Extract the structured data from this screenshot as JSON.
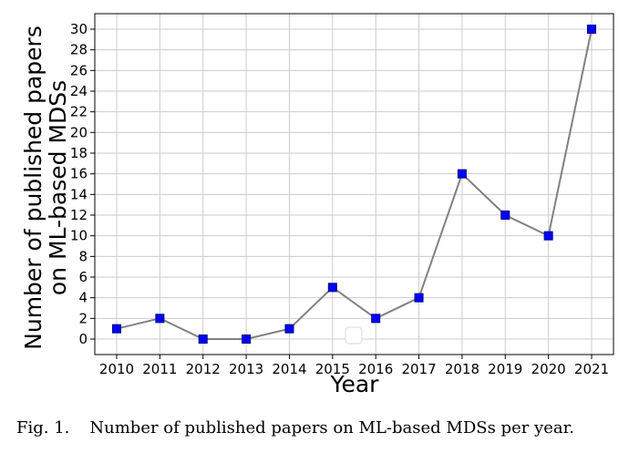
{
  "chart_data": {
    "type": "line",
    "x": [
      "2010",
      "2011",
      "2012",
      "2013",
      "2014",
      "2015",
      "2016",
      "2017",
      "2018",
      "2019",
      "2020",
      "2021"
    ],
    "series": [
      {
        "values": [
          1,
          2,
          0,
          0,
          1,
          5,
          2,
          4,
          16,
          12,
          10,
          30
        ]
      }
    ],
    "xlabel": "Year",
    "ylabel_line1": "Number of published papers",
    "ylabel_line2": "on ML-based MDSs",
    "yticks": [
      "0",
      "2",
      "4",
      "6",
      "8",
      "10",
      "12",
      "14",
      "16",
      "18",
      "20",
      "22",
      "24",
      "26",
      "28",
      "30"
    ],
    "ylim": [
      -1.5,
      31.5
    ],
    "grid": true,
    "legend": "empty box near bottom-center",
    "colors": {
      "line": "#808080",
      "marker": "#0000ff",
      "marker_edge": "#00008b",
      "grid": "#cccccc"
    }
  },
  "caption": {
    "label": "Fig. 1.",
    "text": "Number of published papers on ML-based MDSs per year."
  }
}
